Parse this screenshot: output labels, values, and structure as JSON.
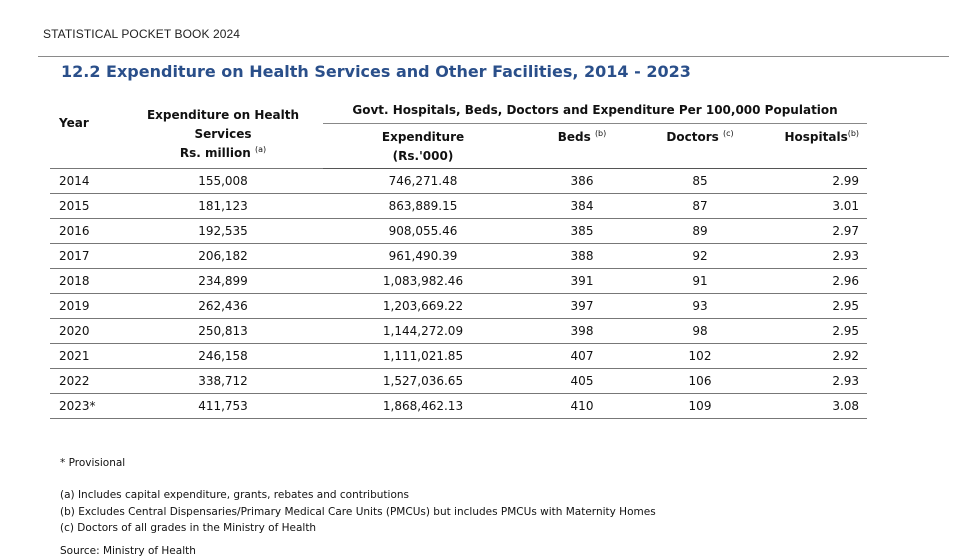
{
  "header": {
    "book_title": "STATISTICAL POCKET BOOK 2024",
    "section_title": "12.2 Expenditure on Health Services and Other Facilities, 2014 - 2023"
  },
  "table": {
    "col_year": "Year",
    "col_expenditure_line1": "Expenditure on Health",
    "col_expenditure_line2": "Services",
    "col_expenditure_line3": "Rs. million",
    "col_expenditure_note": "(a)",
    "group_header": "Govt. Hospitals, Beds, Doctors and Expenditure Per 100,000 Population",
    "sub_expenditure_line1": "Expenditure",
    "sub_expenditure_line2": "(Rs.'000)",
    "sub_beds": "Beds",
    "sub_beds_note": "(b)",
    "sub_doctors": "Doctors",
    "sub_doctors_note": "(c)",
    "sub_hospitals": "Hospitals",
    "sub_hospitals_note": "(b)",
    "rows": [
      {
        "year": "2014",
        "health_exp": "155,008",
        "exp": "746,271.48",
        "beds": "386",
        "doctors": "85",
        "hospitals": "2.99"
      },
      {
        "year": "2015",
        "health_exp": "181,123",
        "exp": "863,889.15",
        "beds": "384",
        "doctors": "87",
        "hospitals": "3.01"
      },
      {
        "year": "2016",
        "health_exp": "192,535",
        "exp": "908,055.46",
        "beds": "385",
        "doctors": "89",
        "hospitals": "2.97"
      },
      {
        "year": "2017",
        "health_exp": "206,182",
        "exp": "961,490.39",
        "beds": "388",
        "doctors": "92",
        "hospitals": "2.93"
      },
      {
        "year": "2018",
        "health_exp": "234,899",
        "exp": "1,083,982.46",
        "beds": "391",
        "doctors": "91",
        "hospitals": "2.96"
      },
      {
        "year": "2019",
        "health_exp": "262,436",
        "exp": "1,203,669.22",
        "beds": "397",
        "doctors": "93",
        "hospitals": "2.95"
      },
      {
        "year": "2020",
        "health_exp": "250,813",
        "exp": "1,144,272.09",
        "beds": "398",
        "doctors": "98",
        "hospitals": "2.95"
      },
      {
        "year": "2021",
        "health_exp": "246,158",
        "exp": "1,111,021.85",
        "beds": "407",
        "doctors": "102",
        "hospitals": "2.92"
      },
      {
        "year": "2022",
        "health_exp": "338,712",
        "exp": "1,527,036.65",
        "beds": "405",
        "doctors": "106",
        "hospitals": "2.93"
      },
      {
        "year": "2023*",
        "health_exp": "411,753",
        "exp": "1,868,462.13",
        "beds": "410",
        "doctors": "109",
        "hospitals": "3.08"
      }
    ]
  },
  "notes": {
    "provisional": "* Provisional",
    "a": "(a) Includes capital expenditure, grants, rebates and contributions",
    "b": "(b) Excludes Central Dispensaries/Primary Medical Care Units (PMCUs) but includes PMCUs with Maternity Homes",
    "c": "(c) Doctors of all grades in the Ministry of Health",
    "source": "Source: Ministry of Health"
  }
}
